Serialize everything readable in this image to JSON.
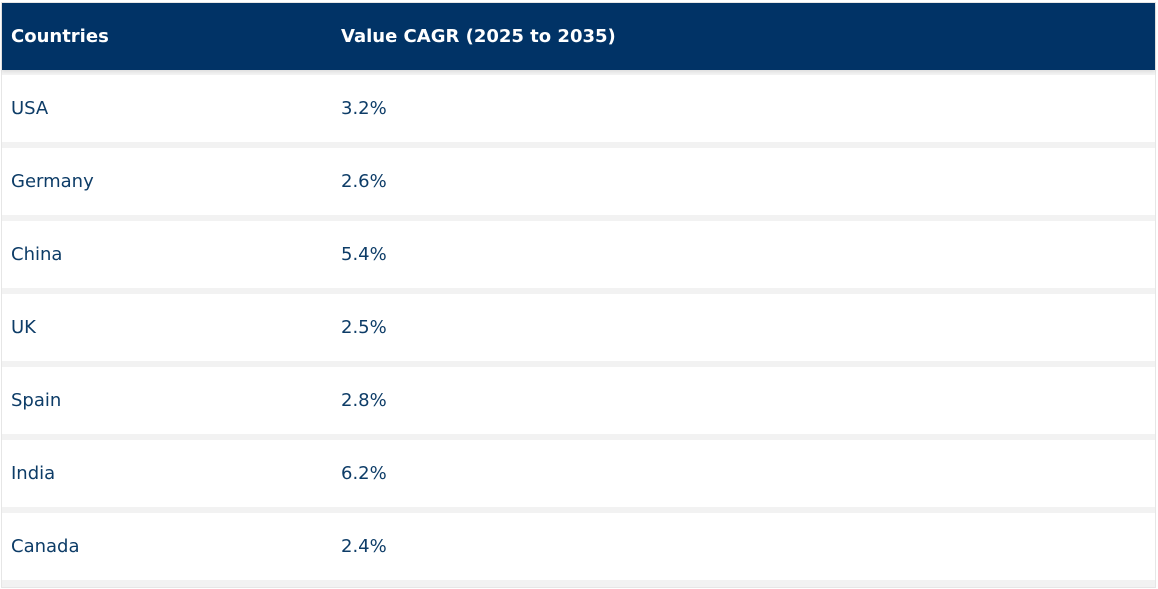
{
  "table": {
    "headers": [
      "Countries",
      "Value CAGR (2025 to 2035)"
    ],
    "rows": [
      {
        "country": "USA",
        "cagr": "3.2%"
      },
      {
        "country": "Germany",
        "cagr": "2.6%"
      },
      {
        "country": "China",
        "cagr": "5.4%"
      },
      {
        "country": "UK",
        "cagr": "2.5%"
      },
      {
        "country": "Spain",
        "cagr": "2.8%"
      },
      {
        "country": "India",
        "cagr": "6.2%"
      },
      {
        "country": "Canada",
        "cagr": "2.4%"
      }
    ]
  },
  "colors": {
    "header_bg": "#013366",
    "header_text": "#ffffff",
    "row_text": "#0d3c67",
    "row_bg": "#ffffff",
    "row_gap": "#f2f2f2"
  }
}
